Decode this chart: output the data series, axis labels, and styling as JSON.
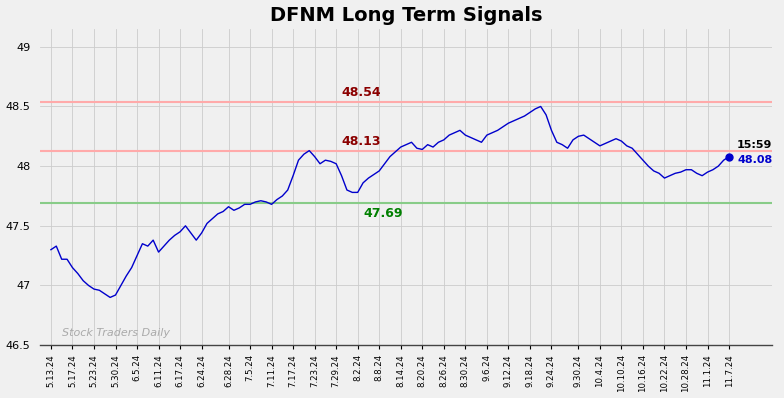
{
  "title": "DFNM Long Term Signals",
  "title_fontsize": 14,
  "title_fontweight": "bold",
  "xlabels": [
    "5.13.24",
    "5.17.24",
    "5.23.24",
    "5.30.24",
    "6.5.24",
    "6.11.24",
    "6.17.24",
    "6.24.24",
    "6.28.24",
    "7.5.24",
    "7.11.24",
    "7.17.24",
    "7.23.24",
    "7.29.24",
    "8.2.24",
    "8.8.24",
    "8.14.24",
    "8.20.24",
    "8.26.24",
    "8.30.24",
    "9.6.24",
    "9.12.24",
    "9.18.24",
    "9.24.24",
    "9.30.24",
    "10.4.24",
    "10.10.24",
    "10.16.24",
    "10.22.24",
    "10.28.24",
    "11.1.24",
    "11.7.24"
  ],
  "ylim": [
    46.5,
    49.15
  ],
  "yticks": [
    46.5,
    47.0,
    47.5,
    48.0,
    48.5,
    49.0
  ],
  "hline_red1": 48.54,
  "hline_red2": 48.13,
  "hline_green": 47.69,
  "annotation_red1_text": "48.54",
  "annotation_red2_text": "48.13",
  "annotation_green_text": "47.69",
  "last_price_text": "48.08",
  "last_time": "15:59",
  "line_color": "#0000cc",
  "hline_red_color": "#ffaaaa",
  "hline_green_color": "#88cc88",
  "watermark": "Stock Traders Daily",
  "watermark_color": "#aaaaaa",
  "bg_color": "#f0f0f0",
  "grid_color": "#cccccc",
  "y_values": [
    47.3,
    47.33,
    47.22,
    47.22,
    47.15,
    47.1,
    47.04,
    47.0,
    46.97,
    46.96,
    46.93,
    46.9,
    46.92,
    47.0,
    47.08,
    47.15,
    47.25,
    47.35,
    47.33,
    47.38,
    47.28,
    47.33,
    47.38,
    47.42,
    47.45,
    47.5,
    47.44,
    47.38,
    47.44,
    47.52,
    47.56,
    47.6,
    47.62,
    47.66,
    47.63,
    47.65,
    47.68,
    47.68,
    47.7,
    47.71,
    47.7,
    47.68,
    47.72,
    47.75,
    47.8,
    47.92,
    48.05,
    48.1,
    48.13,
    48.08,
    48.02,
    48.05,
    48.04,
    48.02,
    47.92,
    47.8,
    47.78,
    47.78,
    47.86,
    47.9,
    47.93,
    47.96,
    48.02,
    48.08,
    48.12,
    48.16,
    48.18,
    48.2,
    48.15,
    48.14,
    48.18,
    48.16,
    48.2,
    48.22,
    48.26,
    48.28,
    48.3,
    48.26,
    48.24,
    48.22,
    48.2,
    48.26,
    48.28,
    48.3,
    48.33,
    48.36,
    48.38,
    48.4,
    48.42,
    48.45,
    48.48,
    48.5,
    48.43,
    48.3,
    48.2,
    48.18,
    48.15,
    48.22,
    48.25,
    48.26,
    48.23,
    48.2,
    48.17,
    48.19,
    48.21,
    48.23,
    48.21,
    48.17,
    48.15,
    48.1,
    48.05,
    48.0,
    47.96,
    47.94,
    47.9,
    47.92,
    47.94,
    47.95,
    47.97,
    47.97,
    47.94,
    47.92,
    47.95,
    47.97,
    48.0,
    48.05,
    48.08
  ]
}
